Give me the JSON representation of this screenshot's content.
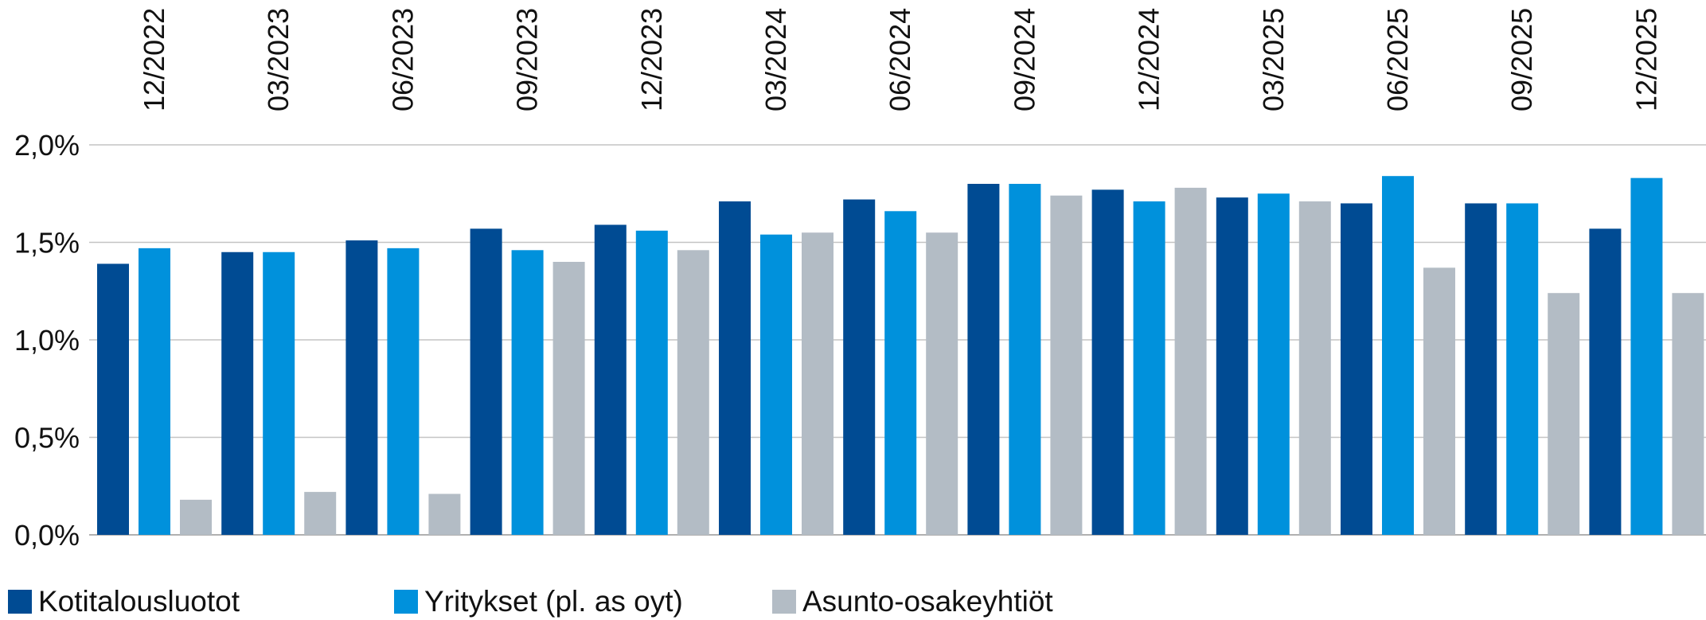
{
  "chart_data": {
    "type": "bar",
    "categories": [
      "12/2022",
      "03/2023",
      "06/2023",
      "09/2023",
      "12/2023",
      "03/2024",
      "06/2024",
      "09/2024",
      "12/2024",
      "03/2025",
      "06/2025",
      "09/2025",
      "12/2025"
    ],
    "series": [
      {
        "name": "Kotitalousluotot",
        "color": "#004b93",
        "values": [
          1.39,
          1.45,
          1.51,
          1.57,
          1.59,
          1.71,
          1.72,
          1.8,
          1.77,
          1.73,
          1.7,
          1.7,
          1.57
        ]
      },
      {
        "name": "Yritykset (pl. as oyt)",
        "color": "#0091dc",
        "values": [
          1.47,
          1.45,
          1.47,
          1.46,
          1.56,
          1.54,
          1.66,
          1.8,
          1.71,
          1.75,
          1.84,
          1.7,
          1.83
        ]
      },
      {
        "name": "Asunto-osakeyhtiöt",
        "color": "#b3bcc5",
        "values": [
          0.18,
          0.22,
          0.21,
          1.4,
          1.46,
          1.55,
          1.55,
          1.74,
          1.78,
          1.71,
          1.37,
          1.24,
          1.24
        ]
      }
    ],
    "yticks": [
      "0,0%",
      "0,5%",
      "1,0%",
      "1,5%",
      "2,0%"
    ],
    "ytick_values": [
      0,
      0.5,
      1.0,
      1.5,
      2.0
    ],
    "ylim": [
      0,
      2.0
    ],
    "grid": true,
    "legend_position": "bottom-left",
    "title": "",
    "xlabel": "",
    "ylabel": ""
  }
}
